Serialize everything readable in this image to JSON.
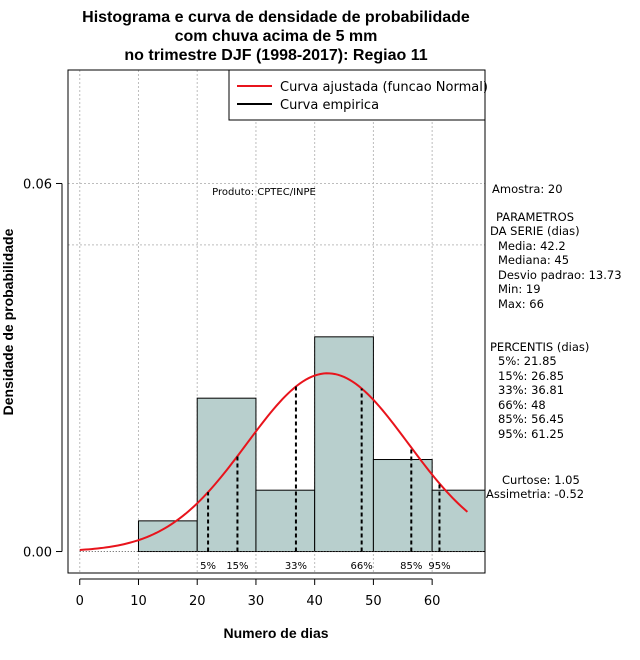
{
  "chart_data": {
    "type": "histogram",
    "title_lines": [
      "Histograma e curva de densidade de probabilidade",
      "com chuva acima de 5 mm",
      "no trimestre DJF (1998-2017): Regiao 11"
    ],
    "xlabel": "Numero de dias",
    "ylabel": "Densidade de probabilidade",
    "xlim": [
      -2,
      69
    ],
    "ylim": [
      -0.0035,
      0.0785
    ],
    "x_ticks": [
      0,
      10,
      20,
      30,
      40,
      50,
      60
    ],
    "y_ticks": [
      {
        "value": 0.0,
        "label": "0.00"
      },
      {
        "value": 0.06,
        "label": "0.06"
      }
    ],
    "grid_x": [
      0,
      10,
      20,
      30,
      40,
      50,
      60
    ],
    "grid_y": [
      0.06,
      0.05
    ],
    "bins": [
      {
        "from": 10,
        "to": 20,
        "density": 0.005
      },
      {
        "from": 20,
        "to": 30,
        "density": 0.025
      },
      {
        "from": 30,
        "to": 40,
        "density": 0.01
      },
      {
        "from": 40,
        "to": 50,
        "density": 0.035
      },
      {
        "from": 50,
        "to": 60,
        "density": 0.015
      },
      {
        "from": 60,
        "to": 70,
        "density": 0.01
      }
    ],
    "normal_fit": {
      "mean": 42.2,
      "sd": 13.73,
      "x_from": 0,
      "x_to": 66
    },
    "percentiles": [
      {
        "label": "5%",
        "value": 21.85
      },
      {
        "label": "15%",
        "value": 26.85
      },
      {
        "label": "33%",
        "value": 36.81
      },
      {
        "label": "66%",
        "value": 48
      },
      {
        "label": "85%",
        "value": 56.45
      },
      {
        "label": "95%",
        "value": 61.25
      }
    ],
    "legend": {
      "position": "top-right",
      "items": [
        {
          "label": "Curva ajustada (funcao Normal)",
          "color": "#e8141c"
        },
        {
          "label": "Curva empirica",
          "color": "#000000"
        }
      ]
    },
    "credit": "Produto: CPTEC/INPE",
    "colors": {
      "bar_fill": "#b8cfcd",
      "normal_curve": "#e8141c",
      "grid": "#bdbdbd"
    }
  },
  "stats_panel": {
    "amostra": "Amostra: 20",
    "params_header1": "PARAMETROS",
    "params_header2": "DA SERIE (dias)",
    "media": "Media: 42.2",
    "mediana": "Mediana: 45",
    "desvio": "Desvio padrao: 13.73",
    "min": "Min: 19",
    "max": "Max: 66",
    "percentis_header": "PERCENTIS (dias)",
    "p5": "5%: 21.85",
    "p15": "15%: 26.85",
    "p33": "33%: 36.81",
    "p66": "66%: 48",
    "p85": "85%: 56.45",
    "p95": "95%: 61.25",
    "curtose": "Curtose: 1.05",
    "assimetria": "Assimetria: -0.52"
  }
}
